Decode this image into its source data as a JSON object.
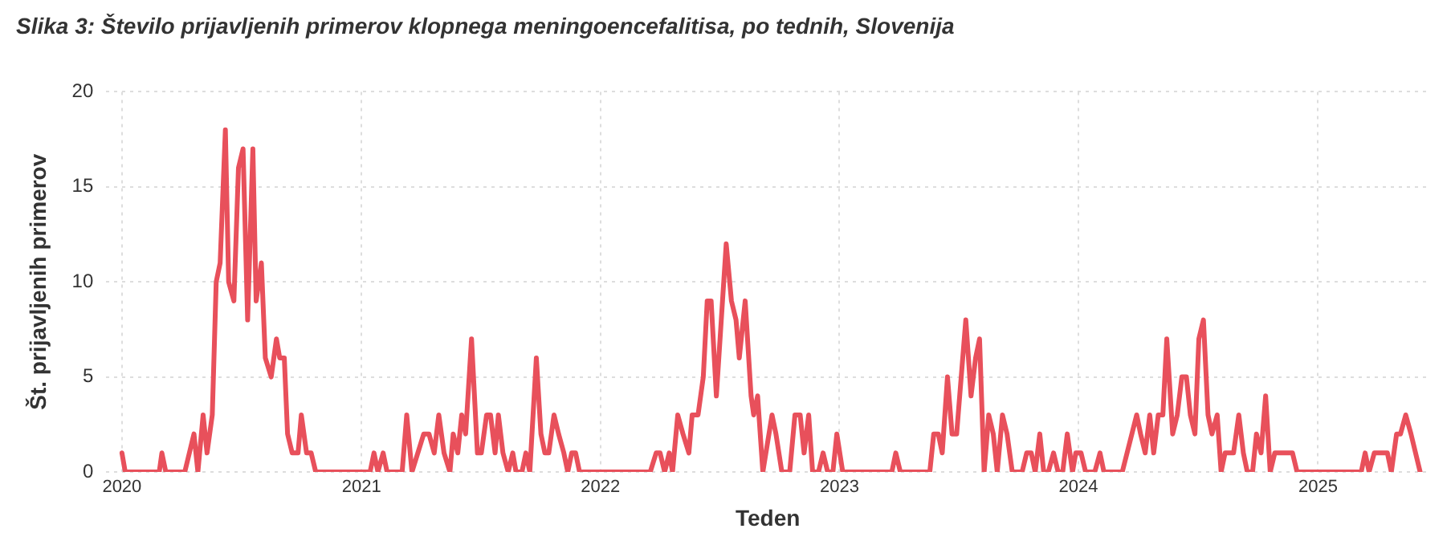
{
  "chart_data": {
    "type": "line",
    "title": "Slika 3: Število prijavljenih primerov klopnega meningoencefalitisa, po tednih, Slovenija",
    "xlabel": "Teden",
    "ylabel": "Št. prijavljenih primerov",
    "xlim": [
      "2019-12-08",
      "2025-06-20"
    ],
    "xticks": [
      {
        "value": "2020-01-01",
        "label": "2020"
      },
      {
        "value": "2021-01-01",
        "label": "2021"
      },
      {
        "value": "2022-01-01",
        "label": "2022"
      },
      {
        "value": "2023-01-01",
        "label": "2023"
      },
      {
        "value": "2024-01-01",
        "label": "2024"
      },
      {
        "value": "2025-01-01",
        "label": "2025"
      }
    ],
    "ylim": [
      0,
      20
    ],
    "yticks": [
      0,
      5,
      10,
      15,
      20
    ],
    "grid": true,
    "marker": "none",
    "line_style": "solid",
    "series": [
      {
        "color": "#e8505b",
        "x": [
          "2020-01-01",
          "2020-01-06",
          "2020-02-27",
          "2020-03-02",
          "2020-03-08",
          "2020-04-06",
          "2020-04-20",
          "2020-04-26",
          "2020-05-04",
          "2020-05-10",
          "2020-05-18",
          "2020-05-24",
          "2020-05-30",
          "2020-06-07",
          "2020-06-12",
          "2020-06-20",
          "2020-06-27",
          "2020-07-04",
          "2020-07-11",
          "2020-07-19",
          "2020-07-24",
          "2020-08-01",
          "2020-08-07",
          "2020-08-16",
          "2020-08-24",
          "2020-08-29",
          "2020-09-05",
          "2020-09-10",
          "2020-09-17",
          "2020-09-26",
          "2020-10-01",
          "2020-10-09",
          "2020-10-16",
          "2020-10-23",
          "2021-01-14",
          "2021-01-20",
          "2021-01-26",
          "2021-02-03",
          "2021-02-09",
          "2021-03-04",
          "2021-03-11",
          "2021-03-19",
          "2021-04-06",
          "2021-04-14",
          "2021-04-22",
          "2021-04-29",
          "2021-05-07",
          "2021-05-16",
          "2021-05-21",
          "2021-05-28",
          "2021-06-03",
          "2021-06-09",
          "2021-06-18",
          "2021-06-27",
          "2021-07-03",
          "2021-07-11",
          "2021-07-17",
          "2021-07-24",
          "2021-07-29",
          "2021-08-05",
          "2021-08-13",
          "2021-08-20",
          "2021-08-25",
          "2021-09-03",
          "2021-09-09",
          "2021-09-15",
          "2021-09-25",
          "2021-10-02",
          "2021-10-08",
          "2021-10-14",
          "2021-10-22",
          "2021-10-29",
          "2021-11-06",
          "2021-11-12",
          "2021-11-18",
          "2021-11-24",
          "2021-11-30",
          "2022-03-18",
          "2022-03-27",
          "2022-04-02",
          "2022-04-09",
          "2022-04-16",
          "2022-04-21",
          "2022-04-29",
          "2022-05-07",
          "2022-05-16",
          "2022-05-21",
          "2022-05-30",
          "2022-06-07",
          "2022-06-13",
          "2022-06-19",
          "2022-06-27",
          "2022-07-12",
          "2022-07-20",
          "2022-07-27",
          "2022-08-01",
          "2022-08-10",
          "2022-08-19",
          "2022-08-23",
          "2022-08-29",
          "2022-09-06",
          "2022-09-20",
          "2022-09-26",
          "2022-10-05",
          "2022-10-17",
          "2022-10-25",
          "2022-11-02",
          "2022-11-08",
          "2022-11-15",
          "2022-11-21",
          "2022-11-30",
          "2022-12-07",
          "2022-12-14",
          "2022-12-22",
          "2022-12-28",
          "2023-01-06",
          "2023-03-22",
          "2023-03-28",
          "2023-04-04",
          "2023-05-19",
          "2023-05-25",
          "2023-06-01",
          "2023-06-07",
          "2023-06-15",
          "2023-06-22",
          "2023-06-29",
          "2023-07-13",
          "2023-07-21",
          "2023-07-28",
          "2023-08-03",
          "2023-08-10",
          "2023-08-17",
          "2023-08-24",
          "2023-08-30",
          "2023-09-07",
          "2023-09-14",
          "2023-09-22",
          "2023-10-07",
          "2023-10-14",
          "2023-10-21",
          "2023-10-27",
          "2023-11-03",
          "2023-11-09",
          "2023-11-16",
          "2023-11-24",
          "2023-12-01",
          "2023-12-08",
          "2023-12-15",
          "2023-12-23",
          "2023-12-28",
          "2024-01-05",
          "2024-01-12",
          "2024-01-26",
          "2024-02-03",
          "2024-02-09",
          "2024-03-08",
          "2024-03-30",
          "2024-04-05",
          "2024-04-12",
          "2024-04-19",
          "2024-04-25",
          "2024-05-02",
          "2024-05-09",
          "2024-05-15",
          "2024-05-24",
          "2024-05-31",
          "2024-06-07",
          "2024-06-14",
          "2024-06-20",
          "2024-06-27",
          "2024-07-03",
          "2024-07-10",
          "2024-07-17",
          "2024-07-23",
          "2024-07-31",
          "2024-08-06",
          "2024-08-12",
          "2024-08-25",
          "2024-09-02",
          "2024-09-09",
          "2024-09-15",
          "2024-09-23",
          "2024-09-29",
          "2024-10-06",
          "2024-10-13",
          "2024-10-20",
          "2024-10-27",
          "2024-11-23",
          "2024-11-30",
          "2025-03-08",
          "2025-03-14",
          "2025-03-20",
          "2025-03-28",
          "2025-04-17",
          "2025-04-23",
          "2025-05-01",
          "2025-05-07",
          "2025-05-15",
          "2025-05-23",
          "2025-06-06"
        ],
        "values": [
          1,
          0,
          0,
          1,
          0,
          0,
          2,
          0,
          3,
          1,
          3,
          10,
          11,
          18,
          10,
          9,
          16,
          17,
          8,
          17,
          9,
          11,
          6,
          5,
          7,
          6,
          6,
          2,
          1,
          1,
          3,
          1,
          1,
          0,
          0,
          1,
          0,
          1,
          0,
          0,
          3,
          0,
          2,
          2,
          1,
          3,
          1,
          0,
          2,
          1,
          3,
          2,
          7,
          1,
          1,
          3,
          3,
          1,
          3,
          1,
          0,
          1,
          0,
          0,
          1,
          0,
          6,
          2,
          1,
          1,
          3,
          2,
          1,
          0,
          1,
          1,
          0,
          0,
          1,
          1,
          0,
          1,
          0,
          3,
          2,
          1,
          3,
          3,
          5,
          9,
          9,
          4,
          12,
          9,
          8,
          6,
          9,
          4,
          3,
          4,
          0,
          3,
          2,
          0,
          0,
          3,
          3,
          1,
          3,
          0,
          0,
          1,
          0,
          0,
          2,
          0,
          0,
          1,
          0,
          0,
          2,
          2,
          1,
          5,
          2,
          2,
          8,
          4,
          6,
          7,
          0,
          3,
          2,
          0,
          3,
          2,
          0,
          0,
          1,
          1,
          0,
          2,
          0,
          0,
          1,
          0,
          0,
          2,
          0,
          1,
          1,
          0,
          0,
          1,
          0,
          0,
          3,
          2,
          1,
          3,
          1,
          3,
          3,
          7,
          2,
          3,
          5,
          5,
          3,
          2,
          7,
          8,
          3,
          2,
          3,
          0,
          1,
          1,
          3,
          1,
          0,
          0,
          2,
          1,
          4,
          0,
          1,
          1,
          0,
          0,
          1,
          0,
          1,
          1,
          0,
          2,
          2,
          3,
          2,
          0
        ]
      }
    ]
  }
}
